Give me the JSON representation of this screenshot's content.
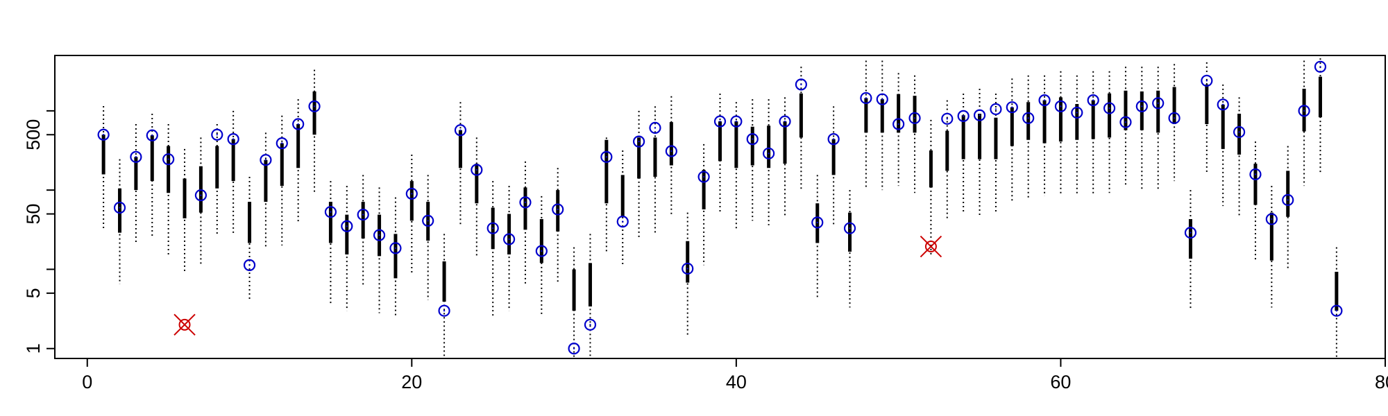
{
  "chart_data": {
    "type": "interval",
    "log_y": true,
    "x": [
      1,
      2,
      3,
      4,
      5,
      6,
      7,
      8,
      9,
      10,
      11,
      12,
      13,
      14,
      15,
      16,
      17,
      18,
      19,
      20,
      21,
      22,
      23,
      24,
      25,
      26,
      27,
      28,
      29,
      30,
      31,
      32,
      33,
      34,
      35,
      36,
      37,
      38,
      39,
      40,
      41,
      42,
      43,
      44,
      45,
      46,
      47,
      48,
      49,
      50,
      51,
      52,
      53,
      54,
      55,
      56,
      57,
      58,
      59,
      60,
      61,
      62,
      63,
      64,
      65,
      66,
      67,
      68,
      69,
      70,
      71,
      72,
      73,
      74,
      75,
      76,
      77
    ],
    "estimate": [
      500,
      60,
      262,
      490,
      245,
      null,
      86,
      500,
      440,
      11.3,
      240,
      390,
      680,
      1140,
      53,
      35,
      49,
      27,
      18.5,
      90,
      41,
      3,
      570,
      180,
      33,
      24,
      70,
      17,
      57,
      1,
      2,
      262,
      40,
      410,
      610,
      310,
      10.2,
      147,
      735,
      735,
      440,
      290,
      735,
      2150,
      39,
      440,
      33,
      1450,
      1400,
      680,
      810,
      null,
      794,
      860,
      880,
      1050,
      1110,
      810,
      1360,
      1140,
      950,
      1360,
      1080,
      720,
      1140,
      1250,
      810,
      29,
      2400,
      1200,
      540,
      158,
      43,
      75,
      1000,
      3600,
      3
    ],
    "inner_high": [
      500,
      105,
      262,
      490,
      360,
      140,
      200,
      360,
      440,
      71,
      240,
      390,
      680,
      1760,
      71,
      49,
      71,
      49,
      28,
      130,
      71,
      12.6,
      570,
      215,
      60,
      50,
      108,
      43,
      100,
      10,
      12,
      430,
      155,
      460,
      460,
      720,
      22.7,
      180,
      735,
      735,
      630,
      650,
      735,
      1660,
      68,
      440,
      52,
      1450,
      1400,
      1630,
      1550,
      316,
      560,
      880,
      920,
      820,
      1110,
      1290,
      1360,
      1480,
      1220,
      1360,
      1660,
      1800,
      1760,
      1800,
      2000,
      43,
      2150,
      1200,
      920,
      215,
      52,
      175,
      1900,
      2700,
      9.3
    ],
    "inner_low": [
      158,
      29,
      100,
      130,
      92,
      44,
      52,
      105,
      130,
      21.5,
      71,
      113,
      190,
      500,
      21.5,
      15.4,
      24.5,
      14.7,
      7.7,
      41,
      23,
      3.9,
      190,
      68,
      18,
      15.4,
      31.6,
      12,
      30,
      3,
      3.4,
      68,
      46,
      140,
      147,
      205,
      6.8,
      57,
      232,
      190,
      205,
      190,
      215,
      460,
      21.5,
      155,
      16.7,
      530,
      530,
      530,
      530,
      108,
      175,
      245,
      245,
      245,
      360,
      430,
      390,
      410,
      430,
      440,
      460,
      570,
      570,
      530,
      680,
      13.6,
      680,
      330,
      280,
      65,
      12.9,
      46,
      550,
      830,
      3
    ],
    "outer_high": [
      1150,
      245,
      680,
      920,
      680,
      330,
      460,
      680,
      1000,
      147,
      530,
      870,
      1400,
      3300,
      130,
      113,
      155,
      108,
      81,
      280,
      155,
      28,
      1290,
      460,
      130,
      113,
      230,
      84,
      190,
      19,
      28,
      460,
      316,
      1000,
      1140,
      1530,
      52,
      380,
      1650,
      1290,
      1400,
      1400,
      1480,
      3600,
      155,
      1140,
      100,
      4300,
      4300,
      3000,
      2800,
      770,
      1360,
      1650,
      1900,
      1650,
      2560,
      2800,
      2800,
      3160,
      2800,
      3160,
      3160,
      3600,
      3600,
      3600,
      3900,
      100,
      4100,
      2150,
      1480,
      410,
      113,
      360,
      4300,
      4600,
      19
    ],
    "outer_low": [
      32,
      6.5,
      21,
      26,
      15,
      8.8,
      11.3,
      26,
      28,
      4.1,
      18,
      20,
      39,
      88,
      3.6,
      3,
      6,
      2.8,
      2.45,
      8.8,
      4.1,
      0.77,
      36,
      14.7,
      2.6,
      3,
      6.5,
      2.6,
      6.5,
      0.77,
      0.77,
      16.7,
      11.3,
      24.5,
      28,
      46,
      1.4,
      11.3,
      52,
      31.6,
      41,
      36,
      46,
      100,
      4.4,
      36,
      3.3,
      108,
      100,
      113,
      92,
      14.7,
      41,
      52,
      46,
      50,
      68,
      77,
      84,
      88,
      88,
      88,
      92,
      113,
      100,
      100,
      130,
      3.2,
      165,
      63,
      46,
      12.9,
      3.3,
      10,
      113,
      165,
      0.77
    ],
    "flagged": {
      "x": [
        6,
        52
      ],
      "values": [
        2,
        19.4
      ]
    },
    "point_color": "#0000cc",
    "flag_color": "#cc0000",
    "bar_color": "#000000",
    "xlim": [
      -2,
      80
    ],
    "xticks": [
      0,
      20,
      40,
      60,
      80
    ],
    "ylim": [
      0.75,
      5000
    ],
    "yticks": [
      1,
      5,
      50,
      500
    ],
    "yminor_ticks": [
      10,
      100,
      1000
    ]
  }
}
